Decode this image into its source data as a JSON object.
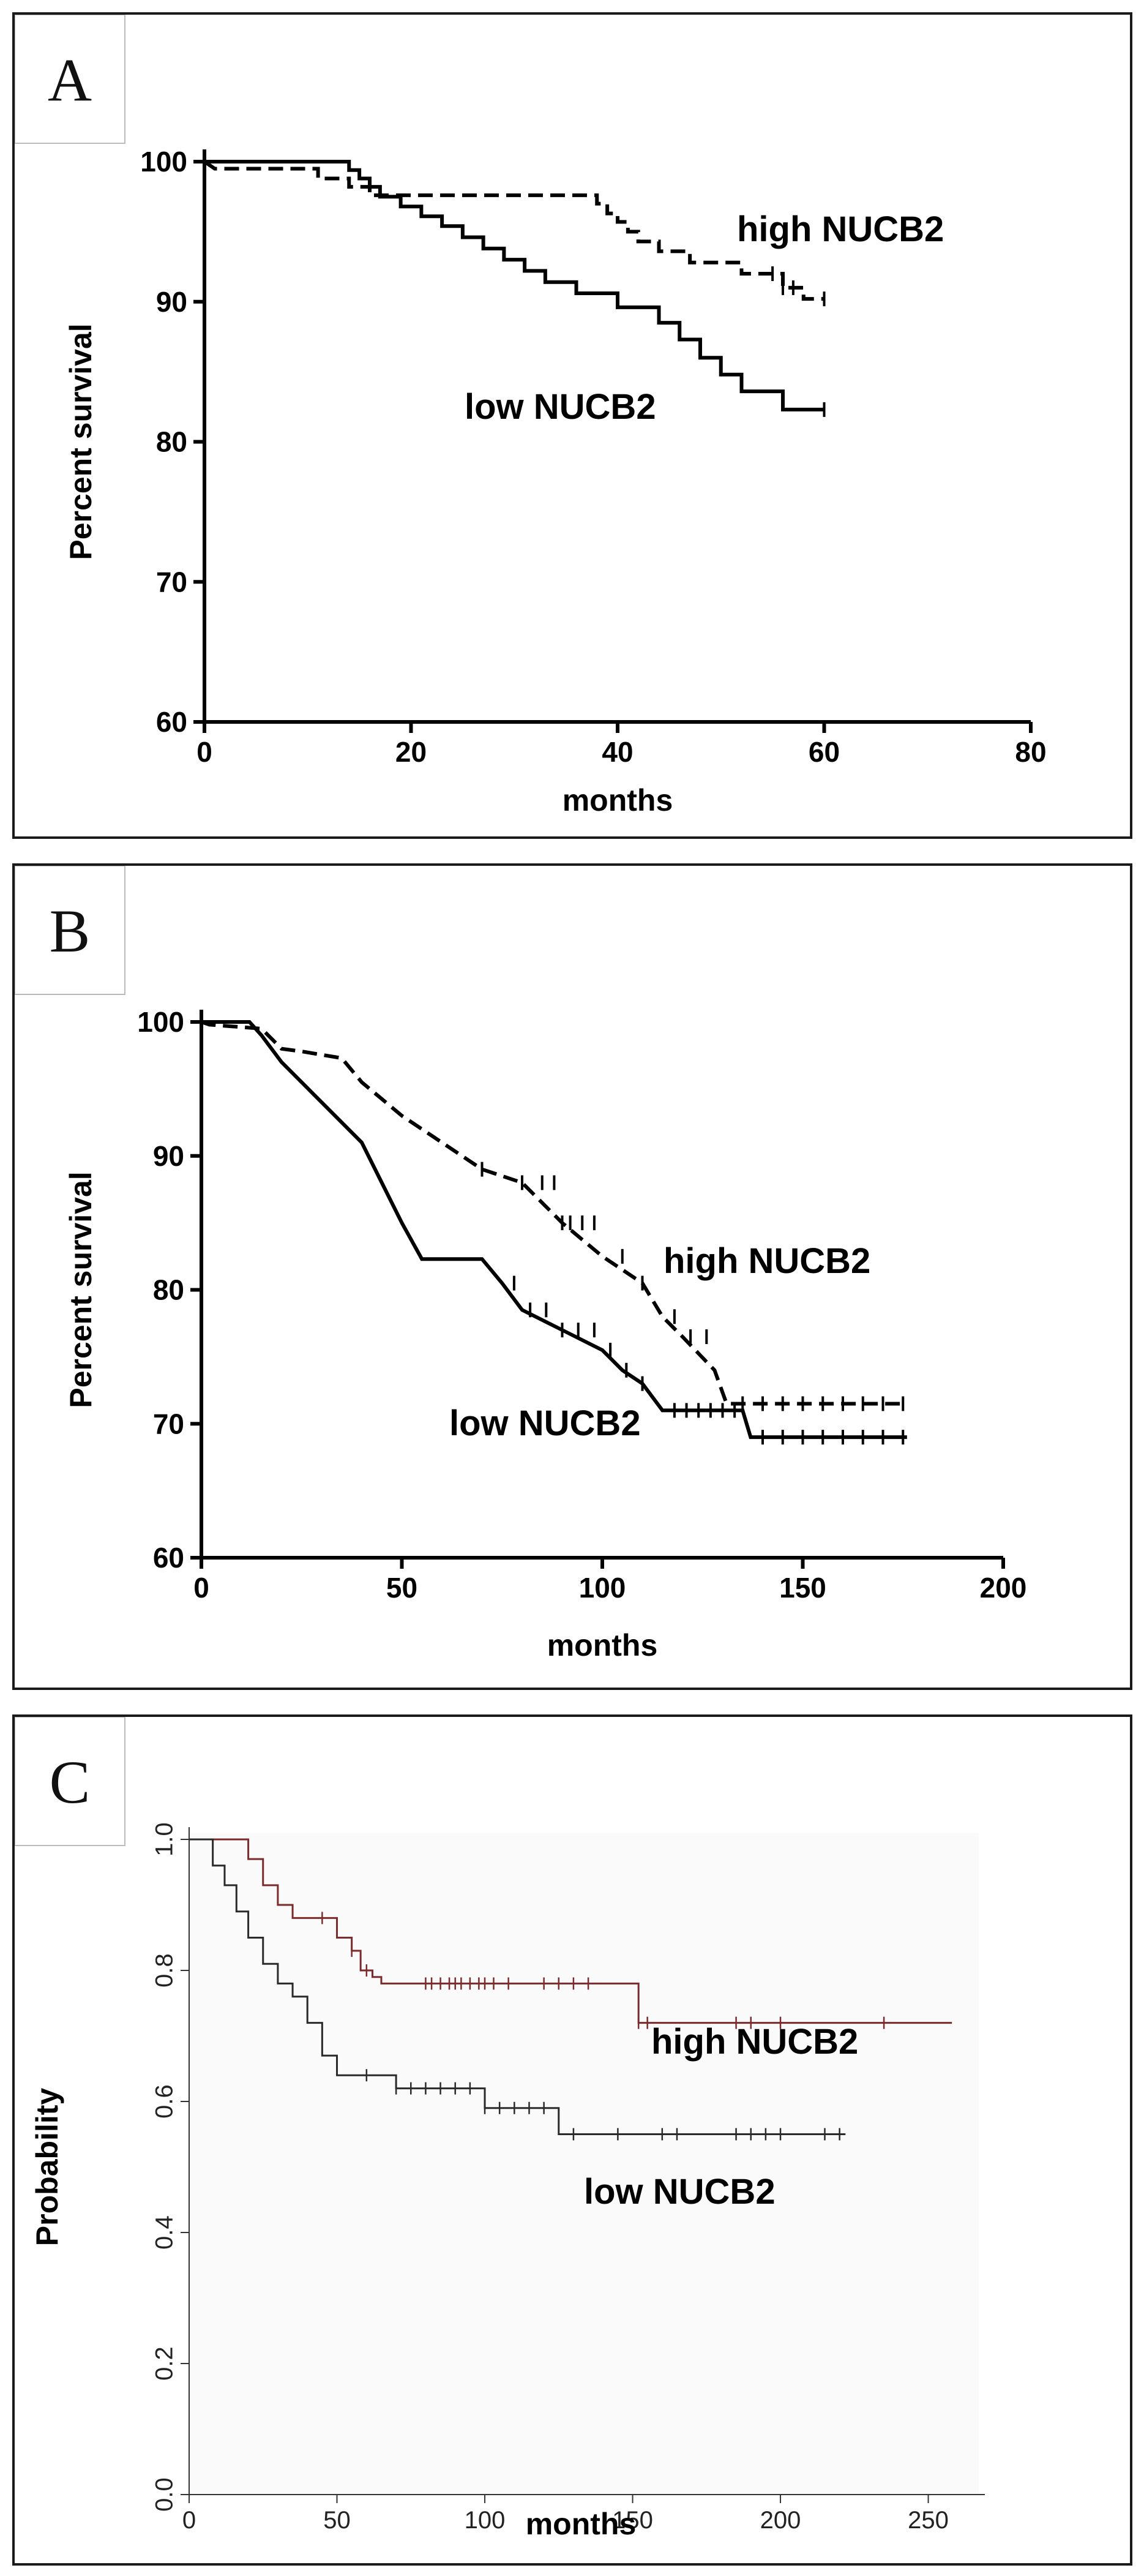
{
  "chart_data": [
    {
      "type": "line",
      "panel_label": "A",
      "xlabel": "months",
      "ylabel": "Percent survival",
      "xlim": [
        0,
        80
      ],
      "ylim": [
        60,
        100
      ],
      "xticks": [
        "0",
        "20",
        "40",
        "60",
        "80"
      ],
      "yticks": [
        "60",
        "70",
        "80",
        "90",
        "100"
      ],
      "series": [
        {
          "name": "high NUCB2",
          "style": "dashed",
          "color": "#000000",
          "x": [
            0,
            1,
            11,
            11,
            14,
            14,
            16,
            16,
            38,
            38,
            39,
            39,
            40,
            40,
            41,
            41,
            42,
            42,
            44,
            44,
            47,
            47,
            52,
            52,
            56,
            56,
            58,
            58,
            60
          ],
          "y": [
            100,
            99.5,
            99.5,
            98.8,
            98.8,
            98.2,
            98.2,
            97.6,
            97.6,
            97,
            97,
            96.3,
            96.3,
            95.7,
            95.7,
            95,
            95,
            94.3,
            94.3,
            93.6,
            93.6,
            92.8,
            92.8,
            92,
            92,
            91,
            91,
            90.2,
            90.2
          ],
          "censored_x": [
            55,
            56,
            57,
            60
          ]
        },
        {
          "name": "low NUCB2",
          "style": "solid",
          "color": "#000000",
          "x": [
            0,
            14,
            14,
            15,
            15,
            16,
            16,
            17,
            17,
            19,
            19,
            21,
            21,
            23,
            23,
            25,
            25,
            27,
            27,
            29,
            29,
            31,
            31,
            33,
            33,
            36,
            36,
            40,
            40,
            44,
            44,
            46,
            46,
            48,
            48,
            50,
            50,
            52,
            52,
            56,
            56,
            60
          ],
          "y": [
            100,
            100,
            99.4,
            99.4,
            98.8,
            98.8,
            98.2,
            98.2,
            97.5,
            97.5,
            96.8,
            96.8,
            96.1,
            96.1,
            95.4,
            95.4,
            94.6,
            94.6,
            93.8,
            93.8,
            93,
            93,
            92.2,
            92.2,
            91.4,
            91.4,
            90.6,
            90.6,
            89.6,
            89.6,
            88.5,
            88.5,
            87.3,
            87.3,
            86,
            86,
            84.8,
            84.8,
            83.6,
            83.6,
            82.3,
            82.3
          ],
          "censored_x": [
            60
          ]
        }
      ]
    },
    {
      "type": "line",
      "panel_label": "B",
      "xlabel": "months",
      "ylabel": "Percent survival",
      "xlim": [
        0,
        200
      ],
      "ylim": [
        60,
        100
      ],
      "xticks": [
        "0",
        "50",
        "100",
        "150",
        "200"
      ],
      "yticks": [
        "60",
        "70",
        "80",
        "90",
        "100"
      ],
      "series": [
        {
          "name": "high NUCB2",
          "style": "dashed",
          "color": "#000000",
          "x": [
            0,
            2,
            15,
            20,
            25,
            35,
            40,
            50,
            60,
            70,
            80,
            90,
            100,
            110,
            115,
            120,
            128,
            131,
            137,
            176
          ],
          "y": [
            100,
            99.8,
            99.5,
            98,
            97.8,
            97.3,
            95.5,
            93,
            91,
            89,
            88,
            85,
            82.5,
            80.5,
            78,
            76.5,
            74,
            71.5,
            71.5,
            71.5
          ],
          "censored_x": [
            70,
            80,
            85,
            88,
            90,
            92,
            95,
            98,
            105,
            110,
            118,
            122,
            126,
            135,
            140,
            145,
            150,
            155,
            160,
            165,
            170,
            175
          ]
        },
        {
          "name": "low NUCB2",
          "style": "solid",
          "color": "#000000",
          "x": [
            0,
            12,
            15,
            20,
            30,
            40,
            45,
            50,
            55,
            70,
            75,
            80,
            90,
            100,
            105,
            110,
            115,
            135,
            137,
            176
          ],
          "y": [
            100,
            100,
            99,
            97,
            94,
            91,
            88,
            85,
            82.3,
            82.3,
            80.5,
            78.5,
            77,
            75.5,
            74,
            73,
            71,
            71,
            69,
            69
          ],
          "censored_x": [
            78,
            82,
            86,
            90,
            94,
            98,
            102,
            106,
            110,
            118,
            121,
            124,
            127,
            130,
            133,
            140,
            145,
            150,
            155,
            160,
            165,
            170,
            175
          ]
        }
      ]
    },
    {
      "type": "line",
      "panel_label": "C",
      "xlabel": "months",
      "ylabel": "Probability",
      "xlim": [
        0,
        265
      ],
      "ylim": [
        0,
        1
      ],
      "xticks": [
        "0",
        "50",
        "100",
        "150",
        "200",
        "250"
      ],
      "yticks": [
        "0.0",
        "0.2",
        "0.4",
        "0.6",
        "0.8",
        "1.0"
      ],
      "series": [
        {
          "name": "high NUCB2",
          "style": "solid",
          "color": "#7b2b2b",
          "x": [
            0,
            20,
            20,
            25,
            25,
            30,
            30,
            35,
            35,
            50,
            50,
            55,
            55,
            58,
            58,
            62,
            62,
            65,
            65,
            152,
            152,
            258
          ],
          "y": [
            1.0,
            1.0,
            0.97,
            0.97,
            0.93,
            0.93,
            0.9,
            0.9,
            0.88,
            0.88,
            0.85,
            0.85,
            0.83,
            0.83,
            0.8,
            0.8,
            0.79,
            0.79,
            0.78,
            0.78,
            0.72,
            0.72
          ],
          "censored_x": [
            45,
            55,
            60,
            80,
            82,
            85,
            88,
            90,
            92,
            95,
            98,
            100,
            103,
            108,
            120,
            125,
            130,
            135,
            152,
            155,
            185,
            190,
            200,
            235
          ]
        },
        {
          "name": "low NUCB2",
          "style": "solid",
          "color": "#2a2a2a",
          "x": [
            0,
            8,
            8,
            12,
            12,
            16,
            16,
            20,
            20,
            25,
            25,
            30,
            30,
            35,
            35,
            40,
            40,
            45,
            45,
            50,
            50,
            70,
            70,
            100,
            100,
            125,
            125,
            222
          ],
          "y": [
            1.0,
            1.0,
            0.96,
            0.96,
            0.93,
            0.93,
            0.89,
            0.89,
            0.85,
            0.85,
            0.81,
            0.81,
            0.78,
            0.78,
            0.76,
            0.76,
            0.72,
            0.72,
            0.67,
            0.67,
            0.64,
            0.64,
            0.62,
            0.62,
            0.59,
            0.59,
            0.55,
            0.55
          ],
          "censored_x": [
            60,
            70,
            75,
            80,
            85,
            90,
            95,
            100,
            105,
            110,
            115,
            120,
            130,
            145,
            160,
            165,
            185,
            190,
            195,
            200,
            215,
            220
          ]
        }
      ]
    }
  ]
}
